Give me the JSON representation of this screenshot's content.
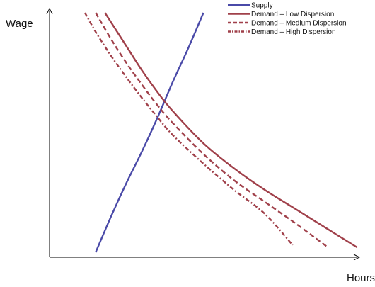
{
  "chart_data": {
    "type": "line",
    "title": "",
    "xlabel": "Hours",
    "ylabel": "Wage",
    "xlim": [
      0,
      10
    ],
    "ylim": [
      0,
      10
    ],
    "grid": false,
    "legend_position": "top-right",
    "axis_color": "#000000",
    "series": [
      {
        "name": "Supply",
        "style": "solid",
        "color": "#4a4aa8",
        "x": [
          1.5,
          2.0,
          2.5,
          3.0,
          3.5,
          4.0,
          4.5,
          5.0
        ],
        "y": [
          0.0,
          1.5,
          2.9,
          4.2,
          5.6,
          7.1,
          8.5,
          10.0
        ]
      },
      {
        "name": "Demand – Low Dispersion",
        "style": "solid",
        "color": "#a0404a",
        "x": [
          1.8,
          2.5,
          3.0,
          3.5,
          4.0,
          5.0,
          6.0,
          7.0,
          8.0,
          9.0,
          10.0
        ],
        "y": [
          10.0,
          8.6,
          7.6,
          6.7,
          5.9,
          4.55,
          3.5,
          2.6,
          1.8,
          1.0,
          0.2
        ]
      },
      {
        "name": "Demand – Medium Dispersion",
        "style": "dashed",
        "color": "#a0404a",
        "x": [
          1.5,
          2.0,
          2.5,
          3.0,
          3.5,
          4.0,
          5.0,
          6.0,
          7.0,
          8.0,
          9.0
        ],
        "y": [
          10.0,
          8.9,
          7.9,
          7.0,
          6.15,
          5.4,
          4.1,
          3.0,
          2.1,
          1.2,
          0.25
        ]
      },
      {
        "name": "Demand – High Dispersion",
        "style": "dashdot",
        "color": "#a0404a",
        "x": [
          1.15,
          1.5,
          2.0,
          2.5,
          3.0,
          3.5,
          4.0,
          5.0,
          6.0,
          7.0,
          7.9
        ],
        "y": [
          10.0,
          9.2,
          8.2,
          7.3,
          6.45,
          5.65,
          4.9,
          3.7,
          2.6,
          1.6,
          0.3
        ]
      }
    ]
  }
}
